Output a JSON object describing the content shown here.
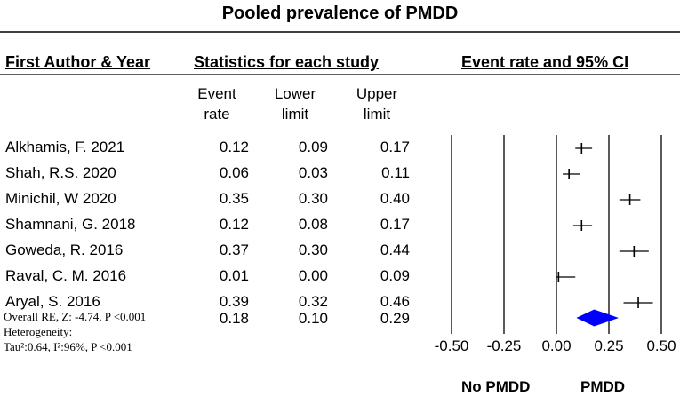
{
  "chart_data": {
    "type": "forest",
    "title": "Pooled prevalence of PMDD",
    "columns": {
      "author": "First Author & Year",
      "stats": "Statistics for each study",
      "plot": "Event rate and 95% CI",
      "event_l1": "Event",
      "event_l2": "rate",
      "lower_l1": "Lower",
      "lower_l2": "limit",
      "upper_l1": "Upper",
      "upper_l2": "limit"
    },
    "studies": [
      {
        "author": "Alkhamis, F. 2021",
        "event": "0.12",
        "lower": "0.09",
        "upper": "0.17",
        "e": 0.12,
        "l": 0.09,
        "u": 0.17
      },
      {
        "author": "Shah, R.S. 2020",
        "event": "0.06",
        "lower": "0.03",
        "upper": "0.11",
        "e": 0.06,
        "l": 0.03,
        "u": 0.11
      },
      {
        "author": "Minichil, W 2020",
        "event": "0.35",
        "lower": "0.30",
        "upper": "0.40",
        "e": 0.35,
        "l": 0.3,
        "u": 0.4
      },
      {
        "author": "Shamnani, G. 2018",
        "event": "0.12",
        "lower": "0.08",
        "upper": "0.17",
        "e": 0.12,
        "l": 0.08,
        "u": 0.17
      },
      {
        "author": "Goweda, R.  2016",
        "event": "0.37",
        "lower": "0.30",
        "upper": "0.44",
        "e": 0.37,
        "l": 0.3,
        "u": 0.44
      },
      {
        "author": "Raval, C. M. 2016",
        "event": "0.01",
        "lower": "0.00",
        "upper": "0.09",
        "e": 0.01,
        "l": 0.0,
        "u": 0.09
      },
      {
        "author": "Aryal, S. 2016",
        "event": "0.39",
        "lower": "0.32",
        "upper": "0.46",
        "e": 0.39,
        "l": 0.32,
        "u": 0.46
      }
    ],
    "overall": {
      "label": "Overall RE, Z: -4.74, P <0.001",
      "heterogeneity": "Heterogeneity:",
      "tau": "Tau²:0.64, I²:96%, P <0.001",
      "event": "0.18",
      "lower": "0.10",
      "upper": "0.29",
      "e": 0.18,
      "l": 0.1,
      "u": 0.29
    },
    "x_axis": {
      "range": [
        -0.5,
        0.5
      ],
      "ticks": [
        -0.5,
        -0.25,
        0,
        0.25,
        0.5
      ],
      "tick_labels": [
        "-0.50",
        "-0.25",
        "0.00",
        "0.25",
        "0.50"
      ]
    },
    "left_label": "No PMDD",
    "right_label": "PMDD"
  }
}
